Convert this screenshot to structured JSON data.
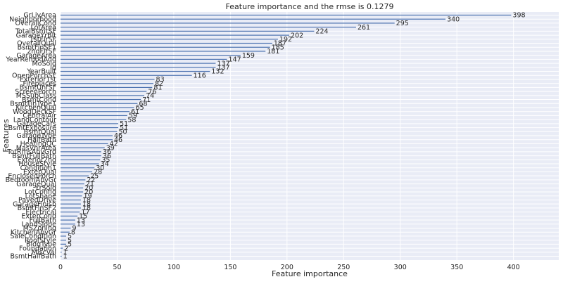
{
  "chart_data": {
    "type": "bar",
    "orientation": "horizontal",
    "title": "Feature importance and the rmse is 0.1279",
    "xlabel": "Feature importance",
    "ylabel": "Features",
    "xlim": [
      0,
      440
    ],
    "xticks": [
      0,
      50,
      100,
      150,
      200,
      250,
      300,
      350,
      400
    ],
    "grid": true,
    "colors": {
      "background": "#e9ecf6",
      "grid": "#ffffff",
      "bar": "#4c72b0",
      "text": "#262626"
    },
    "categories": [
      "GrLivArea",
      "Neighborhood",
      "OverallCond",
      "LotArea",
      "TotalBsmtSF",
      "GarageYrBlt",
      "1stFlrSF",
      "OverallQual",
      "BsmtFinSF1",
      "2ndFlrSF",
      "GarageArea",
      "YearRemodAdd",
      "MoSold",
      "Id",
      "YearBuilt",
      "OpenPorchSF",
      "Exterior1st",
      "Fireplaces",
      "BsmtUnfSF",
      "ScreenPorch",
      "MSSubClass",
      "BsmtCond",
      "BsmtFinType1",
      "KitchenQual",
      "WoodDeckSF",
      "CentralAir",
      "LandContour",
      "GarageCars",
      "BsmtExposure",
      "BsmtQual",
      "GarageType",
      "HalfBath",
      "HeatingQC",
      "MasVnrArea",
      "TotRmsAbvGrd",
      "BsmtFullBath",
      "Exterior2nd",
      "HouseStyle",
      "Condition1",
      "ExterQual",
      "EnclosedPorch",
      "BedroomAbvGr",
      "GarageQual",
      "YrSold",
      "LotConfig",
      "LotShape",
      "PavedDrive",
      "GarageFinish",
      "BsmtFinSF2",
      "Electrical",
      "ExterCond",
      "FullBath",
      "LandSlope",
      "MSZoning",
      "KitchenAbvGr",
      "SaleCondition",
      "RoofStyle",
      "BldgType",
      "Foundation",
      "MiscVal",
      "BsmtHalfBath"
    ],
    "values": [
      398,
      340,
      295,
      261,
      224,
      202,
      192,
      187,
      185,
      181,
      159,
      147,
      137,
      137,
      132,
      116,
      83,
      82,
      81,
      76,
      74,
      71,
      68,
      65,
      61,
      59,
      58,
      51,
      51,
      50,
      46,
      46,
      42,
      39,
      36,
      36,
      35,
      34,
      30,
      28,
      25,
      22,
      21,
      20,
      20,
      19,
      18,
      18,
      18,
      17,
      15,
      13,
      13,
      9,
      8,
      5,
      5,
      5,
      2,
      1,
      1
    ]
  }
}
